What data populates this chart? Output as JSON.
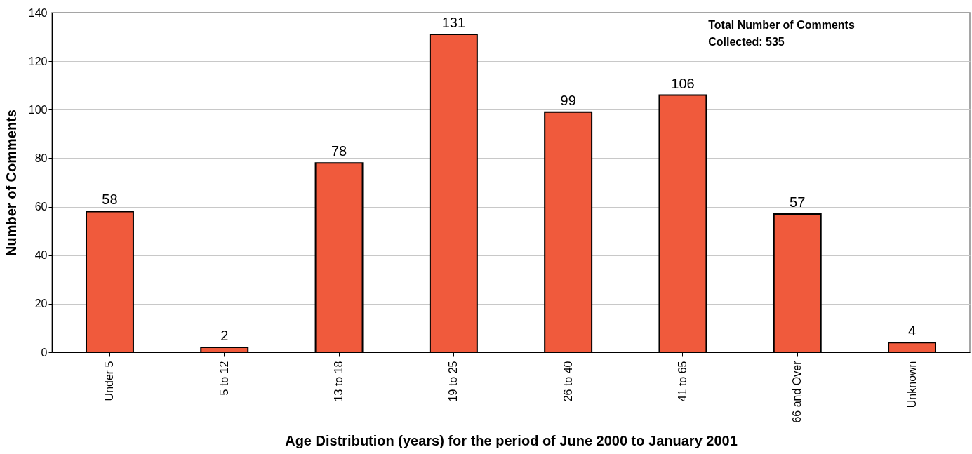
{
  "chart_data": {
    "type": "bar",
    "xlabel": "Age Distribution (years)  for the period of June 2000 to January 2001",
    "ylabel": "Number of Comments",
    "categories": [
      "Under 5",
      "5 to 12",
      "13 to 18",
      "19 to 25",
      "26 to 40",
      "41 to 65",
      "66 and Over",
      "Unknown"
    ],
    "values": [
      58,
      2,
      78,
      131,
      99,
      106,
      57,
      4
    ],
    "color": "#f05a3c",
    "ylim": [
      0,
      140
    ],
    "yticks": [
      0,
      20,
      40,
      60,
      80,
      100,
      120,
      140
    ],
    "grid": "y",
    "data_labels": true,
    "annotations": [
      "Total Number of Comments\nCollected: 535"
    ]
  }
}
